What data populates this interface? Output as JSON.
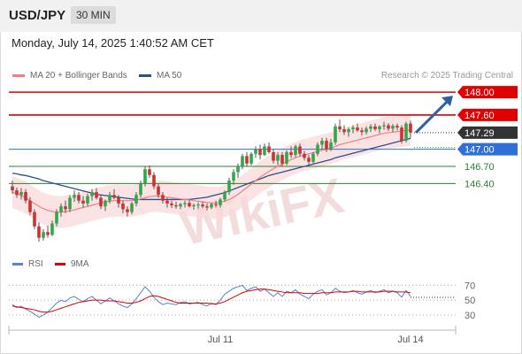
{
  "header": {
    "symbol": "USD/JPY",
    "timeframe": "30 MIN"
  },
  "datetime": "Monday, July 14, 2025 1:40:52 AM CET",
  "legend": [
    {
      "label": "MA 20 + Bollinger Bands",
      "color": "#f08080"
    },
    {
      "label": "MA 50",
      "color": "#2b4f8a"
    }
  ],
  "credit": "Research © 2025 Trading Central",
  "watermark": "WikiFX",
  "chart_data": {
    "type": "candlestick",
    "ylim": [
      145.15,
      148.25
    ],
    "last_price": 147.29,
    "levels": [
      {
        "value": 148.0,
        "label": "148.00",
        "kind": "target",
        "color": "#e00000"
      },
      {
        "value": 147.6,
        "label": "147.60",
        "kind": "resistance",
        "color": "#e00000"
      },
      {
        "value": 147.29,
        "label": "147.29",
        "kind": "last",
        "color": "#333333"
      },
      {
        "value": 147.0,
        "label": "147.00",
        "kind": "pivot",
        "color": "#2f6fd6"
      },
      {
        "value": 146.7,
        "label": "146.70",
        "kind": "support",
        "color": "#2e7d32"
      },
      {
        "value": 146.4,
        "label": "146.40",
        "kind": "support",
        "color": "#2e7d32"
      }
    ],
    "x_ticks": [
      {
        "index": 47,
        "label": "Jul 11"
      },
      {
        "index": 90,
        "label": "Jul 14"
      }
    ],
    "candles": [
      [
        146.35,
        146.45,
        146.22,
        146.28
      ],
      [
        146.28,
        146.33,
        146.15,
        146.2
      ],
      [
        146.2,
        146.32,
        146.12,
        146.25
      ],
      [
        146.25,
        146.3,
        146.05,
        146.1
      ],
      [
        146.1,
        146.16,
        145.85,
        145.9
      ],
      [
        145.9,
        145.95,
        145.6,
        145.65
      ],
      [
        145.65,
        145.72,
        145.38,
        145.45
      ],
      [
        145.45,
        145.6,
        145.4,
        145.55
      ],
      [
        145.55,
        145.66,
        145.45,
        145.5
      ],
      [
        145.5,
        145.75,
        145.48,
        145.7
      ],
      [
        145.7,
        145.95,
        145.65,
        145.9
      ],
      [
        145.9,
        146.05,
        145.82,
        146.0
      ],
      [
        146.0,
        146.1,
        145.88,
        145.95
      ],
      [
        145.95,
        146.2,
        145.9,
        146.15
      ],
      [
        146.15,
        146.28,
        146.08,
        146.2
      ],
      [
        146.2,
        146.25,
        146.05,
        146.1
      ],
      [
        146.1,
        146.18,
        145.98,
        146.05
      ],
      [
        146.05,
        146.22,
        146.0,
        146.18
      ],
      [
        146.18,
        146.3,
        146.1,
        146.25
      ],
      [
        146.25,
        146.32,
        146.12,
        146.15
      ],
      [
        146.15,
        146.2,
        145.95,
        146.0
      ],
      [
        146.0,
        146.12,
        145.92,
        146.1
      ],
      [
        146.1,
        146.25,
        146.05,
        146.2
      ],
      [
        146.2,
        146.3,
        146.12,
        146.15
      ],
      [
        146.15,
        146.2,
        145.98,
        146.05
      ],
      [
        146.05,
        146.1,
        145.88,
        145.95
      ],
      [
        145.95,
        146.0,
        145.82,
        145.9
      ],
      [
        145.9,
        146.08,
        145.86,
        146.05
      ],
      [
        146.05,
        146.25,
        146.0,
        146.2
      ],
      [
        146.2,
        146.45,
        146.15,
        146.4
      ],
      [
        146.4,
        146.7,
        146.35,
        146.65
      ],
      [
        146.65,
        146.72,
        146.5,
        146.55
      ],
      [
        146.55,
        146.6,
        146.3,
        146.35
      ],
      [
        146.35,
        146.4,
        146.15,
        146.2
      ],
      [
        146.2,
        146.25,
        146.05,
        146.1
      ],
      [
        146.1,
        146.15,
        145.98,
        146.05
      ],
      [
        146.05,
        146.1,
        145.97,
        146.02
      ],
      [
        146.02,
        146.08,
        145.96,
        146.0
      ],
      [
        146.0,
        146.06,
        145.95,
        146.04
      ],
      [
        146.04,
        146.1,
        145.98,
        146.06
      ],
      [
        146.06,
        146.1,
        145.98,
        146.0
      ],
      [
        146.0,
        146.05,
        145.94,
        146.02
      ],
      [
        146.02,
        146.07,
        145.96,
        146.03
      ],
      [
        146.03,
        146.08,
        145.97,
        146.0
      ],
      [
        146.0,
        146.05,
        145.93,
        145.98
      ],
      [
        145.98,
        146.06,
        145.95,
        146.04
      ],
      [
        146.04,
        146.1,
        145.98,
        146.02
      ],
      [
        146.02,
        146.15,
        145.98,
        146.12
      ],
      [
        146.12,
        146.28,
        146.08,
        146.25
      ],
      [
        146.25,
        146.5,
        146.2,
        146.45
      ],
      [
        146.45,
        146.65,
        146.38,
        146.6
      ],
      [
        146.6,
        146.75,
        146.5,
        146.7
      ],
      [
        146.7,
        146.92,
        146.65,
        146.88
      ],
      [
        146.88,
        146.95,
        146.7,
        146.75
      ],
      [
        146.75,
        146.95,
        146.72,
        146.92
      ],
      [
        146.92,
        147.05,
        146.85,
        147.0
      ],
      [
        147.0,
        147.08,
        146.82,
        146.9
      ],
      [
        146.9,
        147.1,
        146.88,
        147.05
      ],
      [
        147.05,
        147.12,
        146.92,
        146.95
      ],
      [
        146.95,
        147.0,
        146.75,
        146.8
      ],
      [
        146.8,
        146.95,
        146.72,
        146.9
      ],
      [
        146.9,
        146.95,
        146.7,
        146.75
      ],
      [
        146.75,
        146.98,
        146.72,
        146.95
      ],
      [
        146.95,
        147.05,
        146.85,
        146.9
      ],
      [
        146.9,
        147.08,
        146.86,
        147.05
      ],
      [
        147.05,
        147.1,
        146.88,
        146.92
      ],
      [
        146.92,
        146.97,
        146.8,
        146.85
      ],
      [
        146.85,
        146.9,
        146.72,
        146.78
      ],
      [
        146.78,
        146.95,
        146.75,
        146.92
      ],
      [
        146.92,
        147.12,
        146.88,
        147.08
      ],
      [
        147.08,
        147.2,
        147.0,
        147.15
      ],
      [
        147.15,
        147.2,
        146.95,
        147.0
      ],
      [
        147.0,
        147.18,
        146.97,
        147.12
      ],
      [
        147.12,
        147.45,
        147.08,
        147.4
      ],
      [
        147.4,
        147.52,
        147.3,
        147.35
      ],
      [
        147.35,
        147.42,
        147.25,
        147.3
      ],
      [
        147.3,
        147.38,
        147.22,
        147.35
      ],
      [
        147.35,
        147.42,
        147.28,
        147.38
      ],
      [
        147.38,
        147.45,
        147.3,
        147.33
      ],
      [
        147.33,
        147.38,
        147.24,
        147.3
      ],
      [
        147.3,
        147.4,
        147.26,
        147.36
      ],
      [
        147.36,
        147.44,
        147.3,
        147.4
      ],
      [
        147.4,
        147.45,
        147.32,
        147.35
      ],
      [
        147.35,
        147.42,
        147.28,
        147.4
      ],
      [
        147.4,
        147.48,
        147.34,
        147.42
      ],
      [
        147.42,
        147.46,
        147.32,
        147.36
      ],
      [
        147.36,
        147.44,
        147.3,
        147.41
      ],
      [
        147.41,
        147.45,
        147.33,
        147.38
      ],
      [
        147.38,
        147.42,
        147.1,
        147.15
      ],
      [
        147.15,
        147.48,
        147.12,
        147.45
      ],
      [
        147.45,
        147.5,
        147.2,
        147.29
      ]
    ],
    "ma50": [
      146.58,
      146.57,
      146.55,
      146.54,
      146.52,
      146.5,
      146.48,
      146.45,
      146.43,
      146.41,
      146.39,
      146.37,
      146.35,
      146.33,
      146.31,
      146.29,
      146.27,
      146.25,
      146.23,
      146.21,
      146.2,
      146.19,
      146.18,
      146.17,
      146.16,
      146.15,
      146.14,
      146.13,
      146.12,
      146.12,
      146.12,
      146.12,
      146.12,
      146.12,
      146.12,
      146.12,
      146.12,
      146.12,
      146.12,
      146.12,
      146.12,
      146.13,
      146.14,
      146.15,
      146.16,
      146.18,
      146.2,
      146.22,
      146.24,
      146.27,
      146.3,
      146.33,
      146.36,
      146.39,
      146.42,
      146.45,
      146.48,
      146.51,
      146.54,
      146.56,
      146.58,
      146.6,
      146.62,
      146.64,
      146.66,
      146.68,
      146.7,
      146.72,
      146.74,
      146.76,
      146.78,
      146.8,
      146.82,
      146.85,
      146.87,
      146.89,
      146.91,
      146.93,
      146.95,
      146.97,
      146.99,
      147.01,
      147.03,
      147.05,
      147.07,
      147.09,
      147.11,
      147.13,
      147.15,
      147.17,
      147.19
    ],
    "ma20": [
      146.25,
      146.22,
      146.19,
      146.15,
      146.1,
      146.05,
      146.0,
      145.96,
      145.93,
      145.91,
      145.9,
      145.9,
      145.91,
      145.92,
      145.94,
      145.96,
      145.98,
      146.0,
      146.02,
      146.04,
      146.06,
      146.08,
      146.09,
      146.1,
      146.1,
      146.1,
      146.1,
      146.1,
      146.11,
      146.13,
      146.15,
      146.17,
      146.18,
      146.18,
      146.17,
      146.16,
      146.15,
      146.14,
      146.13,
      146.12,
      146.11,
      146.1,
      146.09,
      146.08,
      146.07,
      146.06,
      146.06,
      146.07,
      146.09,
      146.12,
      146.16,
      146.21,
      146.27,
      146.33,
      146.39,
      146.45,
      146.51,
      146.56,
      146.61,
      146.66,
      146.7,
      146.74,
      146.78,
      146.82,
      146.85,
      146.88,
      146.9,
      146.92,
      146.94,
      146.96,
      146.98,
      147.0,
      147.02,
      147.05,
      147.08,
      147.1,
      147.12,
      147.14,
      147.16,
      147.18,
      147.2,
      147.22,
      147.24,
      147.26,
      147.28,
      147.29,
      147.3,
      147.31,
      147.32,
      147.33,
      147.34
    ],
    "bb_width": 0.28,
    "rsi": {
      "ylim": [
        18,
        80
      ],
      "levels": [
        {
          "value": 70,
          "label": "70"
        },
        {
          "value": 50,
          "label": "50"
        },
        {
          "value": 30,
          "label": "30"
        }
      ],
      "rsi_values": [
        44,
        40,
        42,
        38,
        35,
        31,
        27,
        30,
        34,
        40,
        46,
        50,
        48,
        53,
        55,
        51,
        48,
        52,
        55,
        50,
        45,
        49,
        53,
        49,
        45,
        42,
        40,
        45,
        52,
        60,
        68,
        62,
        54,
        48,
        44,
        46,
        45,
        44,
        47,
        48,
        45,
        46,
        47,
        44,
        42,
        46,
        44,
        50,
        58,
        62,
        66,
        68,
        70,
        63,
        66,
        68,
        62,
        65,
        60,
        55,
        60,
        55,
        62,
        60,
        64,
        58,
        55,
        52,
        58,
        62,
        64,
        57,
        60,
        66,
        62,
        60,
        61,
        63,
        60,
        58,
        61,
        63,
        60,
        62,
        64,
        60,
        62,
        60,
        54,
        63,
        55
      ],
      "ma9": [
        42,
        41,
        40,
        39,
        38,
        37,
        35,
        34,
        34,
        35,
        37,
        39,
        41,
        43,
        45,
        47,
        48,
        49,
        50,
        50,
        50,
        49,
        49,
        49,
        48,
        47,
        46,
        46,
        47,
        49,
        52,
        55,
        56,
        55,
        53,
        51,
        49,
        47,
        46,
        46,
        46,
        46,
        46,
        46,
        46,
        45,
        45,
        46,
        48,
        51,
        54,
        57,
        60,
        62,
        63,
        64,
        65,
        65,
        64,
        63,
        62,
        61,
        60,
        60,
        60,
        60,
        59,
        59,
        59,
        59,
        60,
        60,
        60,
        61,
        61,
        61,
        61,
        62,
        62,
        61,
        61,
        61,
        61,
        61,
        62,
        62,
        62,
        61,
        61,
        61,
        60
      ]
    },
    "rsi_legend": [
      {
        "label": "RSI",
        "color": "#5b7fd6"
      },
      {
        "label": "9MA",
        "color": "#e00000"
      }
    ]
  }
}
